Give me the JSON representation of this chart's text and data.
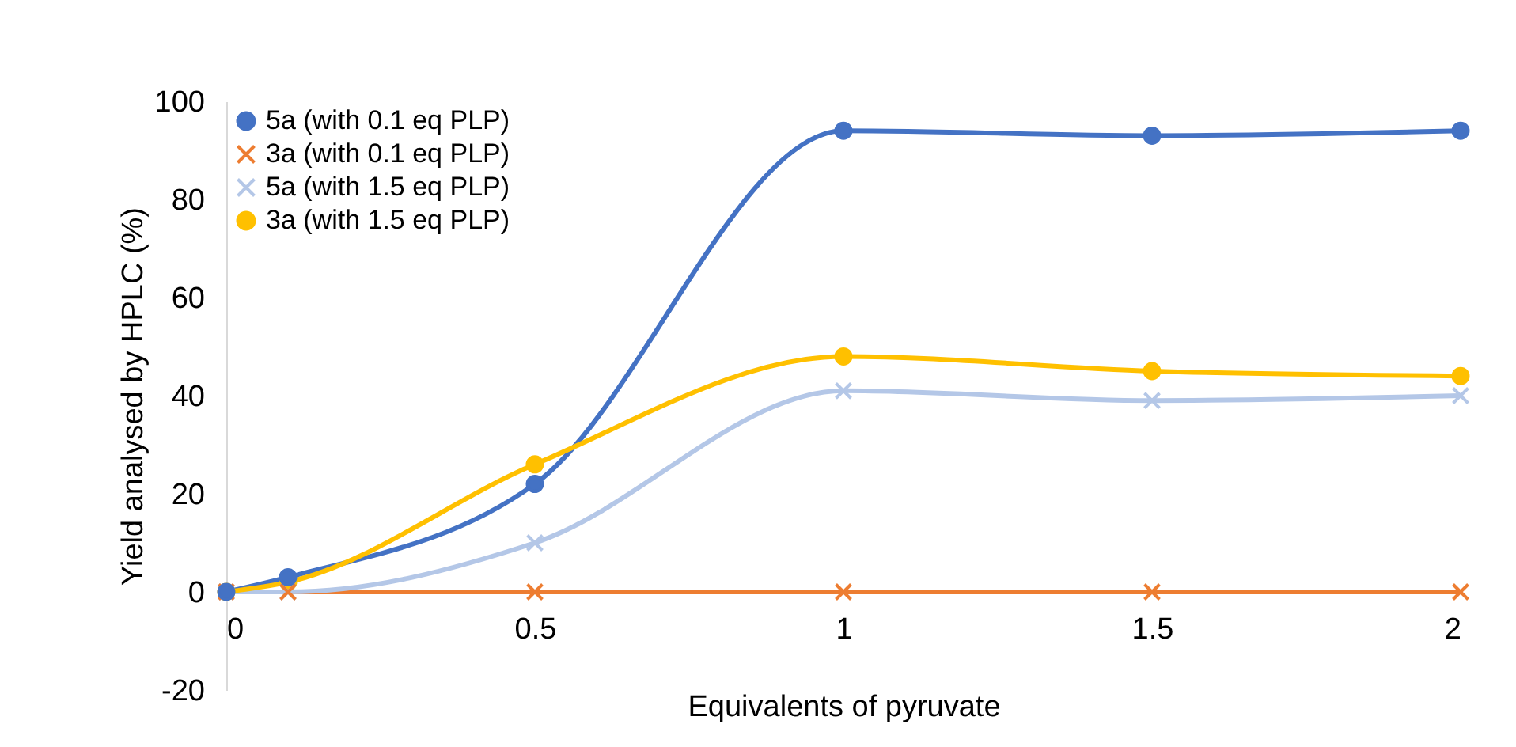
{
  "chart_data": {
    "type": "line",
    "xlabel": "Equivalents of pyruvate",
    "ylabel": "Yield analysed by HPLC (%)",
    "x": [
      0,
      0.1,
      0.5,
      1,
      1.5,
      2
    ],
    "series": [
      {
        "name": "5a (with 0.1 eq PLP)",
        "color": "#4472c4",
        "marker": "circle",
        "values": [
          0,
          3,
          22,
          94,
          93,
          94
        ]
      },
      {
        "name": "3a (with 0.1 eq PLP)",
        "color": "#ed7d31",
        "marker": "cross",
        "values": [
          0,
          0,
          0,
          0,
          0,
          0
        ]
      },
      {
        "name": "5a (with 1.5 eq PLP)",
        "color": "#b4c7e7",
        "marker": "cross",
        "values": [
          0,
          0,
          10,
          41,
          39,
          40
        ]
      },
      {
        "name": "3a (with 1.5 eq PLP)",
        "color": "#ffc000",
        "marker": "circle",
        "values": [
          0,
          2,
          26,
          48,
          45,
          44
        ]
      }
    ],
    "xlim": [
      0,
      2
    ],
    "xticks": [
      0,
      0.5,
      1,
      1.5,
      2
    ],
    "ylim": [
      -20,
      100
    ],
    "yticks": [
      -20,
      0,
      20,
      40,
      60,
      80,
      100
    ],
    "grid": false,
    "legend": "top left",
    "line_style": "solid"
  }
}
